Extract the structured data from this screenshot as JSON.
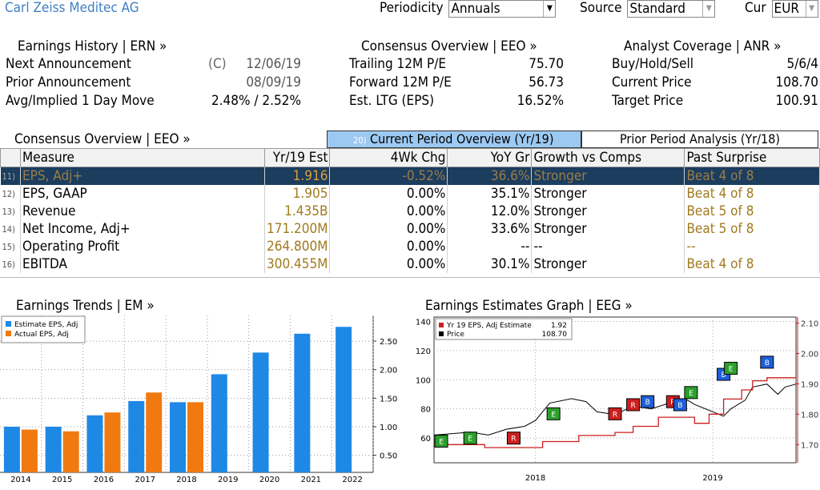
{
  "company": "Carl Zeiss Meditec AG",
  "controls": {
    "periodicity_label": "Periodicity",
    "periodicity_value": "Annuals",
    "source_label": "Source",
    "source_value": "Standard",
    "cur_label": "Cur",
    "cur_value": "EUR"
  },
  "earnings_history": {
    "title": "Earnings History | ERN »",
    "rows": [
      {
        "label": "Next Announcement",
        "prefix": "(C)",
        "value": "12/06/19"
      },
      {
        "label": "Prior Announcement",
        "prefix": "",
        "value": "08/09/19"
      },
      {
        "label": "Avg/Implied 1 Day Move",
        "prefix": "",
        "value": "2.48% / 2.52%"
      }
    ]
  },
  "consensus_top": {
    "title": "Consensus Overview | EEO »",
    "rows": [
      {
        "label": "Trailing 12M P/E",
        "value": "75.70"
      },
      {
        "label": "Forward 12M P/E",
        "value": "56.73"
      },
      {
        "label": "Est. LTG (EPS)",
        "value": "16.52%"
      }
    ]
  },
  "analyst": {
    "title": "Analyst Coverage | ANR »",
    "rows": [
      {
        "label": "Buy/Hold/Sell",
        "value": "5/6/4"
      },
      {
        "label": "Current Price",
        "value": "108.70"
      },
      {
        "label": "Target Price",
        "value": "100.91"
      }
    ]
  },
  "consensus_table": {
    "title": "Consensus Overview | EEO »",
    "tab_active": "Current Period Overview (Yr/19)",
    "tab_active_num": "20)",
    "tab_inactive": "Prior Period Analysis (Yr/18)",
    "headers": [
      "Measure",
      "Yr/19 Est",
      "4Wk Chg",
      "YoY Gr",
      "Growth vs Comps",
      "Past Surprise"
    ],
    "rows": [
      {
        "n": "11)",
        "measure": "EPS, Adj+",
        "est": "1.916",
        "chg": "-0.52%",
        "yoy": "36.6%",
        "growth": "Stronger",
        "surprise": "Beat 4 of 8"
      },
      {
        "n": "12)",
        "measure": "EPS, GAAP",
        "est": "1.905",
        "chg": "0.00%",
        "yoy": "35.1%",
        "growth": "Stronger",
        "surprise": "Beat 4 of 8"
      },
      {
        "n": "13)",
        "measure": "Revenue",
        "est": "1.435B",
        "chg": "0.00%",
        "yoy": "12.0%",
        "growth": "Stronger",
        "surprise": "Beat 5 of 8"
      },
      {
        "n": "14)",
        "measure": "Net Income, Adj+",
        "est": "171.200M",
        "chg": "0.00%",
        "yoy": "33.6%",
        "growth": "Stronger",
        "surprise": "Beat 5 of 8"
      },
      {
        "n": "15)",
        "measure": "Operating Profit",
        "est": "264.800M",
        "chg": "0.00%",
        "yoy": "--",
        "growth": "--",
        "surprise": "--"
      },
      {
        "n": "16)",
        "measure": "EBITDA",
        "est": "300.455M",
        "chg": "0.00%",
        "yoy": "30.1%",
        "growth": "Stronger",
        "surprise": "Beat 4 of 8"
      }
    ]
  },
  "colors": {
    "estimate": "#1e88e5",
    "actual": "#f07a10",
    "price": "#000000",
    "eps_line": "#cc1f1f",
    "selected_row": "#1c3d5e",
    "tab_active": "#9cc9f2"
  },
  "chart_data": [
    {
      "type": "bar",
      "title": "Earnings Trends | EM »",
      "categories": [
        "2014",
        "2015",
        "2016",
        "2017",
        "2018",
        "2019",
        "2020",
        "2021",
        "2022"
      ],
      "series": [
        {
          "name": "Estimate EPS, Adj",
          "values": [
            1.0,
            1.0,
            1.2,
            1.45,
            1.43,
            1.92,
            2.3,
            2.63,
            2.75
          ]
        },
        {
          "name": "Actual EPS, Adj",
          "values": [
            0.95,
            0.92,
            1.25,
            1.6,
            1.43,
            null,
            null,
            null,
            null
          ]
        }
      ],
      "y_ticks": [
        "0.50",
        "1.00",
        "1.50",
        "2.00",
        "2.50"
      ],
      "ylim": [
        0.2,
        2.95
      ],
      "legend": "top-left",
      "grid": true
    },
    {
      "type": "line",
      "title": "Earnings Estimates Graph | EEG »",
      "x_ticks": [
        "2018",
        "2019"
      ],
      "left_ticks": [
        "60",
        "80",
        "100",
        "120",
        "140"
      ],
      "left_ylim": [
        43,
        143
      ],
      "right_ticks": [
        "1.70",
        "1.80",
        "1.90",
        "2.00",
        "2.10"
      ],
      "right_ylim": [
        1.64,
        2.12
      ],
      "legend": [
        {
          "name": "Yr 19 EPS, Adj Estimate",
          "value": "1.92"
        },
        {
          "name": "Price",
          "value": "108.70"
        }
      ],
      "markers": [
        "E",
        "E",
        "R",
        "E",
        "R",
        "R",
        "B",
        "R",
        "B",
        "E",
        "B",
        "E",
        "B"
      ],
      "grid": true
    }
  ]
}
